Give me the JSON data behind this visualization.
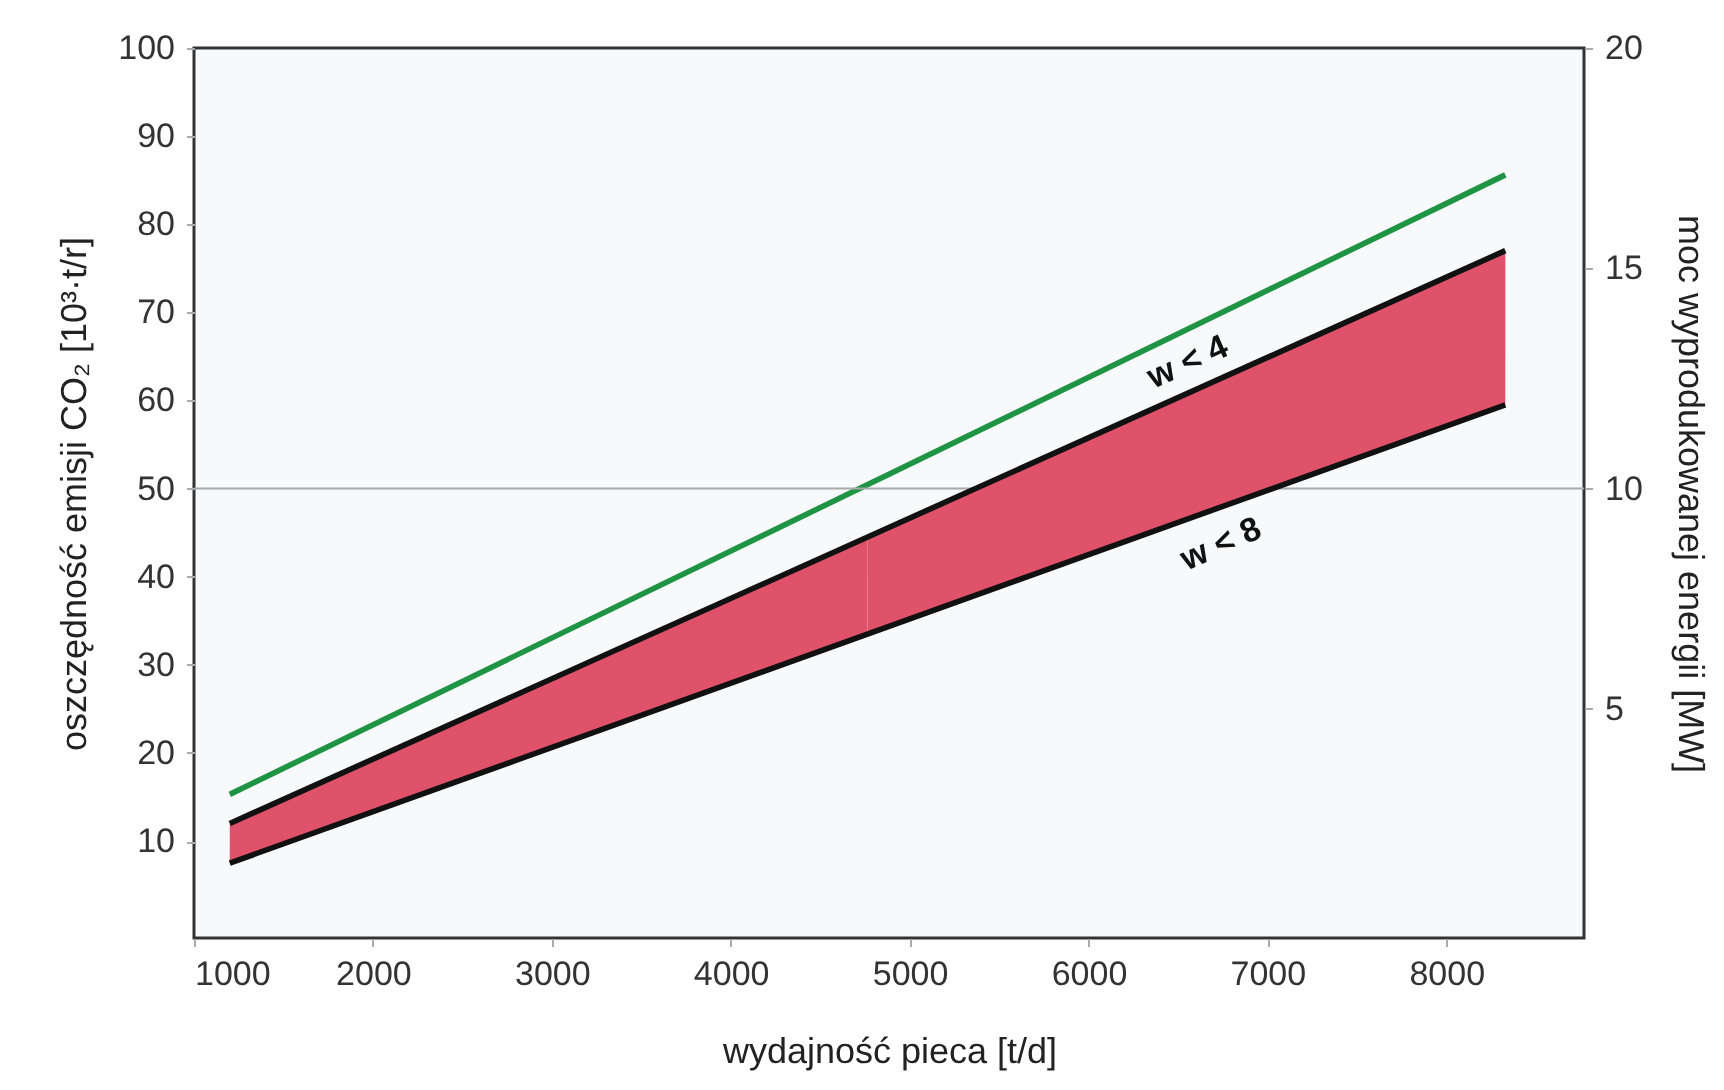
{
  "chart_data": {
    "type": "line",
    "xlabel": "wydajność pieca [t/d]",
    "ylabel": "oszczędność emisji CO₂ [10³·t/r]",
    "y2label": "moc wyprodukowanej energii [MW]",
    "x": [
      1200,
      8330
    ],
    "series": [
      {
        "color": "#1e9444",
        "values": [
          15.3,
          85.6
        ]
      },
      {
        "name": "w < 4",
        "axis": "y2",
        "color": "#111111",
        "values": [
          2.4,
          15.4
        ],
        "lower": [
          1.5,
          11.9
        ],
        "upper": [
          2.4,
          15.4
        ],
        "colors": [
          "#e0526a",
          "#e0526a"
        ]
      },
      {
        "name": "w < 8",
        "axis": "y2",
        "color": "#111111",
        "values": [
          1.5,
          11.9
        ]
      }
    ],
    "xlim": [
      1000,
      8770
    ],
    "xticks": [
      1000,
      2000,
      3000,
      4000,
      5000,
      6000,
      7000,
      8000
    ],
    "ylim": [
      -1,
      100
    ],
    "yticks": [
      10,
      20,
      30,
      40,
      50,
      60,
      70,
      80,
      90,
      100
    ],
    "y2lim": [
      -0.2,
      20
    ],
    "y2ticks": [
      5,
      10,
      15,
      20
    ],
    "ref_lines": [
      {
        "axis": "y",
        "value": 50,
        "color": "#aaaaaa"
      }
    ],
    "grid": false
  }
}
